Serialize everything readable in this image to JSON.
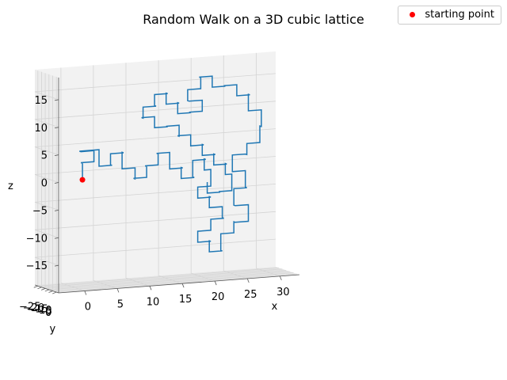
{
  "chart_data": {
    "type": "line",
    "title": "Random Walk on a 3D cubic lattice",
    "xlabel": "x",
    "ylabel": "y",
    "zlabel": "z",
    "xlim": [
      -4,
      33
    ],
    "ylim": [
      3,
      -29
    ],
    "zlim": [
      -20,
      19
    ],
    "xticks": [
      0,
      5,
      10,
      15,
      20,
      25,
      30
    ],
    "yticks": [
      0,
      -5,
      -10,
      -15,
      -20,
      -25
    ],
    "zticks": [
      -15,
      -10,
      -5,
      0,
      5,
      10,
      15
    ],
    "grid": true,
    "legend": "top-right",
    "series": [
      {
        "name": "",
        "kind": "walk",
        "color": "#1f77b4",
        "path": [
          [
            0,
            0,
            0
          ],
          [
            0,
            0,
            3
          ],
          [
            0,
            -2,
            3
          ],
          [
            2,
            -2,
            3
          ],
          [
            2,
            -2,
            5
          ],
          [
            0,
            -2,
            5
          ],
          [
            0,
            -4,
            5
          ],
          [
            3,
            -4,
            5
          ],
          [
            3,
            -4,
            2
          ],
          [
            5,
            -4,
            2
          ],
          [
            5,
            -6,
            2
          ],
          [
            5,
            -6,
            4
          ],
          [
            7,
            -6,
            4
          ],
          [
            7,
            -8,
            4
          ],
          [
            7,
            -8,
            1
          ],
          [
            9,
            -8,
            1
          ],
          [
            9,
            -8,
            -1
          ],
          [
            9,
            -10,
            -1
          ],
          [
            11,
            -10,
            -1
          ],
          [
            11,
            -10,
            1
          ],
          [
            11,
            -12,
            1
          ],
          [
            13,
            -12,
            1
          ],
          [
            13,
            -12,
            3
          ],
          [
            13,
            -14,
            3
          ],
          [
            15,
            -14,
            3
          ],
          [
            15,
            -14,
            0
          ],
          [
            17,
            -14,
            0
          ],
          [
            17,
            -16,
            0
          ],
          [
            17,
            -16,
            -2
          ],
          [
            19,
            -16,
            -2
          ],
          [
            19,
            -18,
            -2
          ],
          [
            19,
            -18,
            1
          ],
          [
            21,
            -18,
            1
          ],
          [
            21,
            -20,
            1
          ],
          [
            21,
            -20,
            -1
          ],
          [
            22,
            -20,
            -1
          ],
          [
            22,
            -20,
            -4
          ],
          [
            20,
            -20,
            -4
          ],
          [
            20,
            -20,
            -6
          ],
          [
            22,
            -20,
            -6
          ],
          [
            22,
            -22,
            -6
          ],
          [
            22,
            -22,
            -8
          ],
          [
            24,
            -22,
            -8
          ],
          [
            24,
            -22,
            -10
          ],
          [
            24,
            -20,
            -10
          ],
          [
            22,
            -20,
            -10
          ],
          [
            22,
            -20,
            -12
          ],
          [
            20,
            -20,
            -12
          ],
          [
            20,
            -20,
            -14
          ],
          [
            22,
            -20,
            -14
          ],
          [
            22,
            -22,
            -14
          ],
          [
            22,
            -22,
            -16
          ],
          [
            24,
            -22,
            -16
          ],
          [
            24,
            -24,
            -16
          ],
          [
            24,
            -24,
            -13
          ],
          [
            26,
            -24,
            -13
          ],
          [
            26,
            -24,
            -11
          ],
          [
            26,
            -22,
            -11
          ],
          [
            28,
            -22,
            -11
          ],
          [
            28,
            -22,
            -8
          ],
          [
            26,
            -22,
            -8
          ],
          [
            26,
            -24,
            -8
          ],
          [
            26,
            -24,
            -5
          ],
          [
            28,
            -24,
            -5
          ],
          [
            28,
            -26,
            -5
          ],
          [
            28,
            -26,
            -2
          ],
          [
            26,
            -26,
            -2
          ],
          [
            26,
            -26,
            1
          ],
          [
            28,
            -26,
            1
          ],
          [
            28,
            -24,
            1
          ],
          [
            28,
            -24,
            3
          ],
          [
            30,
            -24,
            3
          ],
          [
            30,
            -24,
            6
          ],
          [
            30,
            -22,
            6
          ],
          [
            30,
            -22,
            9
          ],
          [
            28,
            -22,
            9
          ],
          [
            28,
            -22,
            12
          ],
          [
            28,
            -20,
            12
          ],
          [
            26,
            -20,
            12
          ],
          [
            26,
            -20,
            14
          ],
          [
            24,
            -20,
            14
          ],
          [
            24,
            -18,
            14
          ],
          [
            22,
            -18,
            14
          ],
          [
            22,
            -18,
            16
          ],
          [
            20,
            -18,
            16
          ],
          [
            20,
            -16,
            16
          ],
          [
            20,
            -16,
            14
          ],
          [
            18,
            -16,
            14
          ],
          [
            18,
            -16,
            12
          ],
          [
            18,
            -14,
            12
          ],
          [
            20,
            -14,
            12
          ],
          [
            20,
            -14,
            10
          ],
          [
            18,
            -14,
            10
          ],
          [
            18,
            -12,
            10
          ],
          [
            16,
            -12,
            10
          ],
          [
            16,
            -12,
            12
          ],
          [
            16,
            -10,
            12
          ],
          [
            14,
            -10,
            12
          ],
          [
            14,
            -10,
            14
          ],
          [
            14,
            -8,
            14
          ],
          [
            12,
            -8,
            14
          ],
          [
            12,
            -8,
            12
          ],
          [
            12,
            -6,
            12
          ],
          [
            10,
            -6,
            12
          ],
          [
            10,
            -6,
            10
          ],
          [
            10,
            -8,
            10
          ],
          [
            12,
            -8,
            10
          ],
          [
            12,
            -8,
            8
          ],
          [
            14,
            -8,
            8
          ],
          [
            14,
            -10,
            8
          ],
          [
            16,
            -10,
            8
          ],
          [
            16,
            -10,
            6
          ],
          [
            16,
            -12,
            6
          ],
          [
            18,
            -12,
            6
          ],
          [
            18,
            -12,
            4
          ],
          [
            20,
            -12,
            4
          ],
          [
            20,
            -14,
            4
          ],
          [
            20,
            -14,
            2
          ],
          [
            22,
            -14,
            2
          ],
          [
            22,
            -16,
            2
          ],
          [
            22,
            -16,
            0
          ],
          [
            24,
            -16,
            0
          ],
          [
            24,
            -18,
            0
          ],
          [
            24,
            -18,
            -2
          ],
          [
            25,
            -18,
            -2
          ],
          [
            25,
            -18,
            -5
          ],
          [
            23,
            -18,
            -5
          ],
          [
            23,
            -16,
            -5
          ],
          [
            21,
            -16,
            -5
          ],
          [
            21,
            -16,
            -3
          ]
        ]
      },
      {
        "name": "starting point",
        "kind": "marker",
        "color": "#ff0000",
        "points": [
          [
            0,
            0,
            0
          ]
        ]
      }
    ]
  }
}
